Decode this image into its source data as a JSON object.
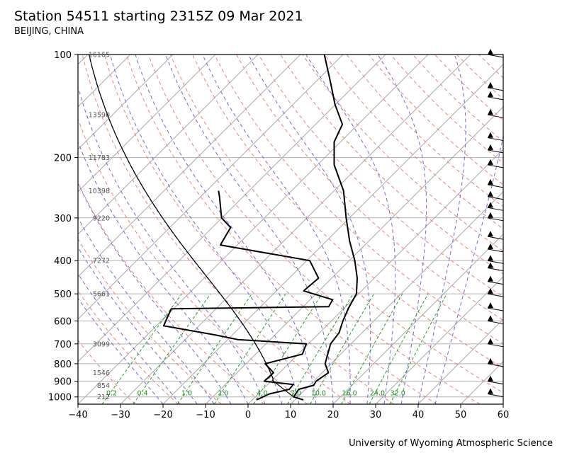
{
  "header": {
    "title": "Station 54511 starting 2315Z 09 Mar 2021",
    "subtitle": "BEIJING, CHINA"
  },
  "footer": {
    "credit": "University of Wyoming Atmospheric Science"
  },
  "chart_data": {
    "type": "skew-t",
    "x_axis": {
      "range": [
        -40,
        60
      ],
      "ticks": [
        -40,
        -30,
        -20,
        -10,
        0,
        10,
        20,
        30,
        40,
        50,
        60
      ]
    },
    "y_axis": {
      "scale": "log",
      "range": [
        1050,
        100
      ],
      "ticks": [
        1000,
        900,
        800,
        700,
        600,
        500,
        400,
        300,
        200,
        100
      ]
    },
    "skew": "45-degree isotherms",
    "grid": true,
    "height_labels": [
      {
        "pressure": 100,
        "label": "16165"
      },
      {
        "pressure": 150,
        "label": "13590"
      },
      {
        "pressure": 200,
        "label": "11783"
      },
      {
        "pressure": 250,
        "label": "10398"
      },
      {
        "pressure": 300,
        "label": "9220"
      },
      {
        "pressure": 400,
        "label": "7272"
      },
      {
        "pressure": 500,
        "label": "5661"
      },
      {
        "pressure": 700,
        "label": "3099"
      },
      {
        "pressure": 850,
        "label": "1546"
      },
      {
        "pressure": 925,
        "label": "854"
      },
      {
        "pressure": 1000,
        "label": "212"
      }
    ],
    "mixing_ratio_labels": [
      "0.2",
      "0.4",
      "1.0",
      "2.0",
      "4.0",
      "7.0",
      "10.0",
      "16.0",
      "24.0",
      "32.0"
    ],
    "temperature": [
      {
        "p": 1020,
        "t": 12
      },
      {
        "p": 1000,
        "t": 9
      },
      {
        "p": 950,
        "t": 8.4
      },
      {
        "p": 925,
        "t": 11
      },
      {
        "p": 900,
        "t": 10.6
      },
      {
        "p": 850,
        "t": 11.5
      },
      {
        "p": 800,
        "t": 8.6
      },
      {
        "p": 700,
        "t": 5.2
      },
      {
        "p": 650,
        "t": 4.6
      },
      {
        "p": 600,
        "t": 2.7
      },
      {
        "p": 550,
        "t": 1.0
      },
      {
        "p": 500,
        "t": -0.5
      },
      {
        "p": 450,
        "t": -4.0
      },
      {
        "p": 400,
        "t": -8.7
      },
      {
        "p": 350,
        "t": -14.6
      },
      {
        "p": 300,
        "t": -20.8
      },
      {
        "p": 250,
        "t": -27.8
      },
      {
        "p": 210,
        "t": -36.1
      },
      {
        "p": 180,
        "t": -41.5
      },
      {
        "p": 160,
        "t": -43.7
      },
      {
        "p": 140,
        "t": -50.1
      },
      {
        "p": 120,
        "t": -56.6
      },
      {
        "p": 100,
        "t": -64.4
      }
    ],
    "dewpoint": [
      {
        "p": 1020,
        "t": 1
      },
      {
        "p": 980,
        "t": 2.6
      },
      {
        "p": 950,
        "t": 6.2
      },
      {
        "p": 920,
        "t": 6
      },
      {
        "p": 900,
        "t": -1.6
      },
      {
        "p": 850,
        "t": -1.4
      },
      {
        "p": 800,
        "t": -5.5
      },
      {
        "p": 750,
        "t": 1.0
      },
      {
        "p": 700,
        "t": -0.5
      },
      {
        "p": 680,
        "t": -17.7
      },
      {
        "p": 660,
        "t": -23.7
      },
      {
        "p": 620,
        "t": -38.3
      },
      {
        "p": 580,
        "t": -39.6
      },
      {
        "p": 553,
        "t": -40.5
      },
      {
        "p": 545,
        "t": -4.0
      },
      {
        "p": 520,
        "t": -4.7
      },
      {
        "p": 490,
        "t": -13.6
      },
      {
        "p": 450,
        "t": -13.1
      },
      {
        "p": 400,
        "t": -19.3
      },
      {
        "p": 360,
        "t": -44.0
      },
      {
        "p": 320,
        "t": -45.7
      },
      {
        "p": 300,
        "t": -50.1
      },
      {
        "p": 260,
        "t": -55.6
      },
      {
        "p": 250,
        "t": -57.2
      }
    ]
  }
}
